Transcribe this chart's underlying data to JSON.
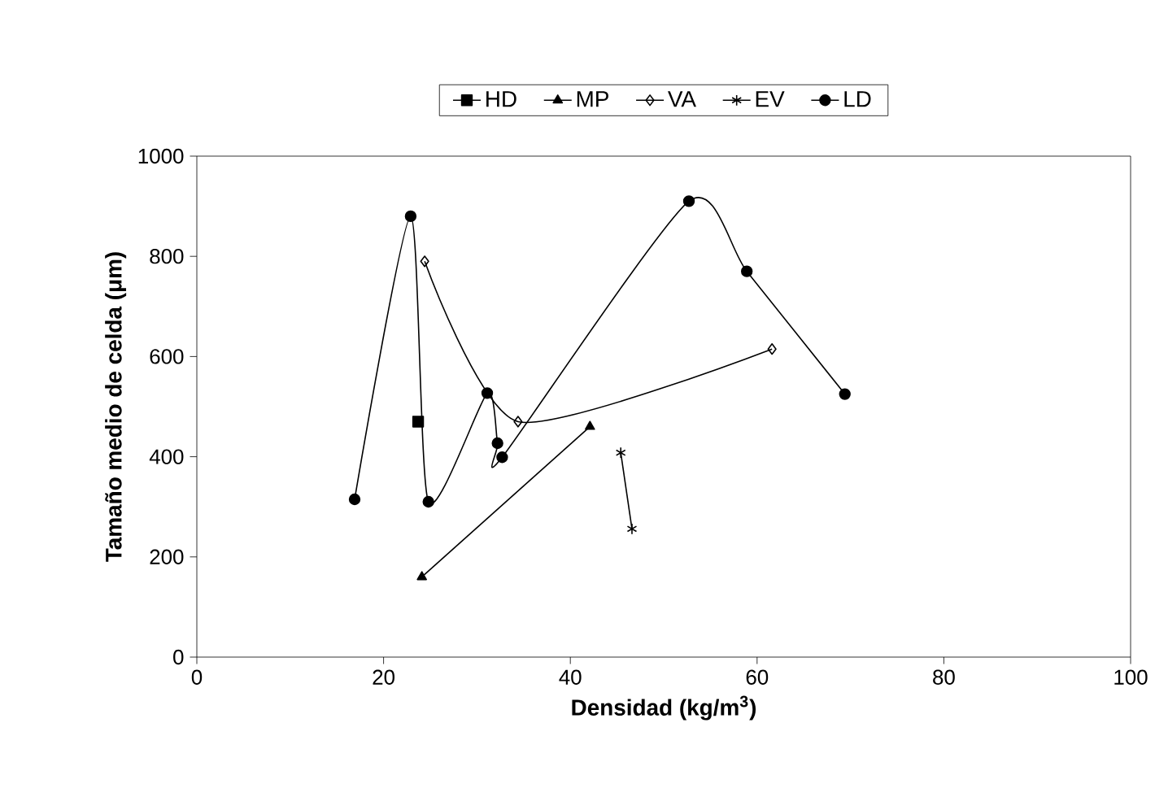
{
  "chart_data": {
    "type": "line",
    "xlabel": "Densidad (kg/m$^{3}$)",
    "ylabel": "Tamaño medio de celda (μm)",
    "xlim": [
      0,
      100
    ],
    "xticks": [
      0,
      20,
      40,
      60,
      80,
      100
    ],
    "ylim": [
      0,
      1000
    ],
    "yticks": [
      0,
      200,
      400,
      600,
      800,
      1000
    ],
    "grid": false,
    "legend": "top",
    "line_style": "solid",
    "series": [
      {
        "name": "HD",
        "color": "#000000",
        "marker": "square",
        "x": [
          23.7
        ],
        "values": [
          470
        ]
      },
      {
        "name": "MP",
        "color": "#000000",
        "marker": "triangle",
        "x": [
          24.1,
          42.1
        ],
        "values": [
          160,
          460
        ]
      },
      {
        "name": "VA",
        "color": "#000000",
        "marker": "diamond",
        "x": [
          24.4,
          34.4,
          61.6
        ],
        "values": [
          790,
          470,
          615
        ]
      },
      {
        "name": "EV",
        "color": "#000000",
        "marker": "cross",
        "x": [
          45.4,
          46.6
        ],
        "values": [
          408,
          256
        ]
      },
      {
        "name": "LD",
        "color": "#000000",
        "marker": "circle",
        "x": [
          16.9,
          22.9,
          24.8,
          31.1,
          32.2,
          32.7,
          52.7,
          58.9,
          69.4
        ],
        "values": [
          315,
          880,
          310,
          527,
          427,
          399,
          910,
          770,
          525
        ]
      }
    ]
  }
}
